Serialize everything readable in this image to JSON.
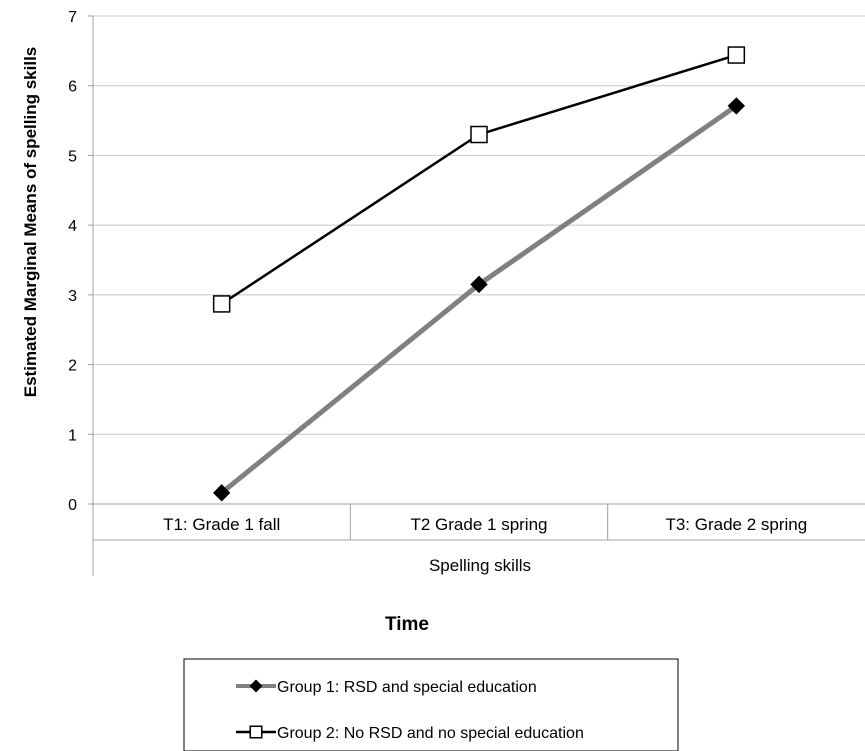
{
  "chart_data": {
    "type": "line",
    "ylabel": "Estimated Marginal Means of spelling skills",
    "xlabel": "Time",
    "x_group_label": "Spelling skills",
    "categories": [
      "T1: Grade 1 fall",
      "T2 Grade 1 spring",
      "T3: Grade 2 spring"
    ],
    "ylim": [
      0,
      7
    ],
    "yticks": [
      "0",
      "1",
      "2",
      "3",
      "4",
      "5",
      "6",
      "7"
    ],
    "grid": "horizontal",
    "legend_position": "bottom",
    "series": [
      {
        "name": "Group 1: RSD and special education",
        "values": [
          0.16,
          3.15,
          5.71
        ],
        "marker": "filled-diamond",
        "line_color": "#808080",
        "marker_color": "#000000"
      },
      {
        "name": "Group 2: No RSD and no special education",
        "values": [
          2.87,
          5.3,
          6.44
        ],
        "marker": "open-square",
        "line_color": "#000000",
        "marker_color": "#000000"
      }
    ]
  }
}
